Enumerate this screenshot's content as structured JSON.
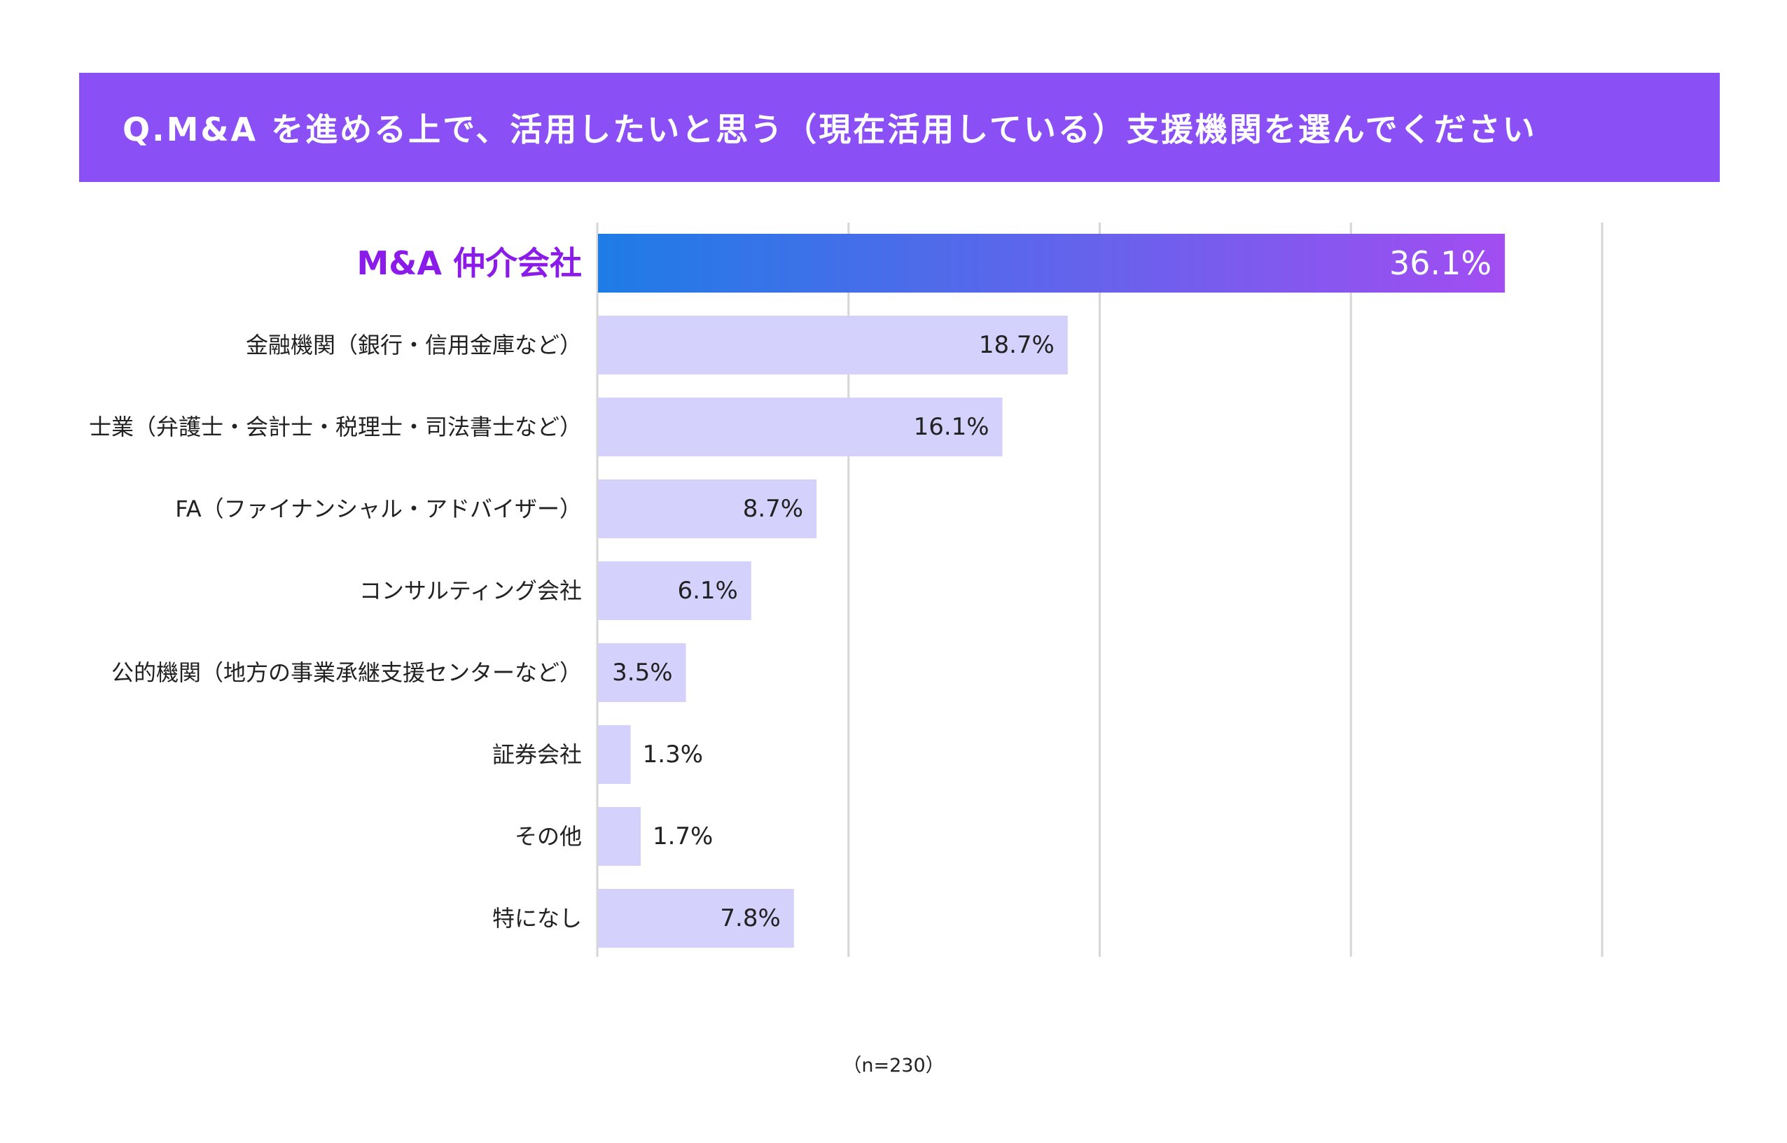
{
  "title": "Q.M&A を進める上で、活用したいと思う（現在活用している）支援機関を選んでください",
  "note": "（n=230）",
  "colors": {
    "banner": "#8b50f5",
    "highlight_start": "#1e7ce6",
    "highlight_end": "#a24df2",
    "bar": "#d4d2fc",
    "highlight_label": "#8a1be8",
    "grid": "#d6d6d6"
  },
  "chart_data": {
    "type": "bar",
    "orientation": "horizontal",
    "categories": [
      "M&A 仲介会社",
      "金融機関（銀行・信用金庫など）",
      "士業（弁護士・会計士・税理士・司法書士など）",
      "FA（ファイナンシャル・アドバイザー）",
      "コンサルティング会社",
      "公的機関（地方の事業承継支援センターなど）",
      "証券会社",
      "その他",
      "特になし"
    ],
    "values": [
      36.1,
      18.7,
      16.1,
      8.7,
      6.1,
      3.5,
      1.3,
      1.7,
      7.8
    ],
    "labels": [
      "36.1%",
      "18.7%",
      "16.1%",
      "8.7%",
      "6.1%",
      "3.5%",
      "1.3%",
      "1.7%",
      "7.8%"
    ],
    "highlight_index": 0,
    "xlim": [
      0,
      40
    ],
    "grid": true,
    "unit": "%"
  }
}
